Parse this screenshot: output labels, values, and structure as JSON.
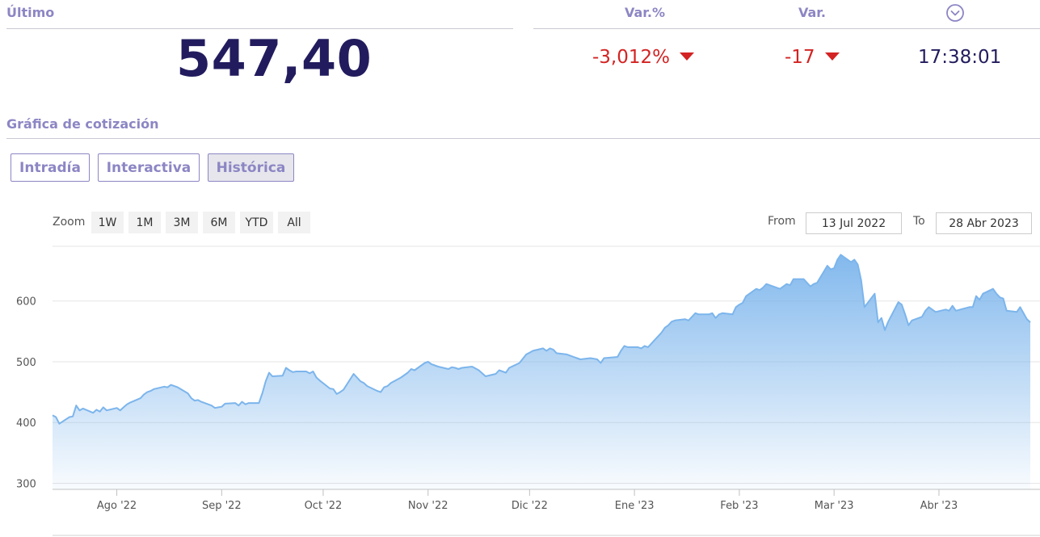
{
  "header": {
    "last_label": "Último",
    "last_value": "547,40",
    "varpct_label": "Var.%",
    "varpct_value": "-3,012%",
    "var_label": "Var.",
    "var_value": "-17",
    "time_value": "17:38:01",
    "negative_color": "#d32323",
    "label_color": "#8c86c4",
    "value_color": "#221c5e"
  },
  "section": {
    "title": "Gráfica de cotización"
  },
  "tabs": [
    {
      "label": "Intradía",
      "active": false
    },
    {
      "label": "Interactiva",
      "active": false
    },
    {
      "label": "Histórica",
      "active": true
    }
  ],
  "zoom": {
    "label": "Zoom",
    "buttons": [
      "1W",
      "1M",
      "3M",
      "6M",
      "YTD",
      "All"
    ]
  },
  "range": {
    "from_label": "From",
    "from_value": "13 Jul 2022",
    "to_label": "To",
    "to_value": "28 Abr 2023"
  },
  "chart_data": {
    "type": "area",
    "title": "",
    "xlabel": "",
    "ylabel": "",
    "ylim": [
      290,
      690
    ],
    "y_ticks": [
      300,
      400,
      500,
      600
    ],
    "x_ticks": [
      {
        "label": "Ago '22",
        "date": "2022-08-01"
      },
      {
        "label": "Sep '22",
        "date": "2022-09-01"
      },
      {
        "label": "Oct '22",
        "date": "2022-10-01"
      },
      {
        "label": "Nov '22",
        "date": "2022-11-01"
      },
      {
        "label": "Dic '22",
        "date": "2022-12-01"
      },
      {
        "label": "Ene '23",
        "date": "2023-01-01"
      },
      {
        "label": "Feb '23",
        "date": "2023-02-01"
      },
      {
        "label": "Mar '23",
        "date": "2023-03-01"
      },
      {
        "label": "Abr '23",
        "date": "2023-04-01"
      }
    ],
    "grid": true,
    "line_color": "#7cb5ec",
    "series": [
      {
        "points": [
          [
            "2022-07-13",
            412
          ],
          [
            "2022-07-14",
            409
          ],
          [
            "2022-07-15",
            398
          ],
          [
            "2022-07-18",
            409
          ],
          [
            "2022-07-19",
            410
          ],
          [
            "2022-07-20",
            428
          ],
          [
            "2022-07-21",
            420
          ],
          [
            "2022-07-22",
            423
          ],
          [
            "2022-07-25",
            416
          ],
          [
            "2022-07-26",
            421
          ],
          [
            "2022-07-27",
            418
          ],
          [
            "2022-07-28",
            425
          ],
          [
            "2022-07-29",
            420
          ],
          [
            "2022-08-01",
            424
          ],
          [
            "2022-08-02",
            420
          ],
          [
            "2022-08-03",
            425
          ],
          [
            "2022-08-04",
            430
          ],
          [
            "2022-08-05",
            433
          ],
          [
            "2022-08-08",
            440
          ],
          [
            "2022-08-09",
            446
          ],
          [
            "2022-08-10",
            450
          ],
          [
            "2022-08-11",
            452
          ],
          [
            "2022-08-12",
            455
          ],
          [
            "2022-08-15",
            459
          ],
          [
            "2022-08-16",
            458
          ],
          [
            "2022-08-17",
            462
          ],
          [
            "2022-08-18",
            460
          ],
          [
            "2022-08-19",
            458
          ],
          [
            "2022-08-22",
            448
          ],
          [
            "2022-08-23",
            440
          ],
          [
            "2022-08-24",
            436
          ],
          [
            "2022-08-25",
            437
          ],
          [
            "2022-08-26",
            434
          ],
          [
            "2022-08-29",
            428
          ],
          [
            "2022-08-30",
            424
          ],
          [
            "2022-08-31",
            425
          ],
          [
            "2022-09-01",
            426
          ],
          [
            "2022-09-02",
            431
          ],
          [
            "2022-09-05",
            432
          ],
          [
            "2022-09-06",
            428
          ],
          [
            "2022-09-07",
            434
          ],
          [
            "2022-09-08",
            430
          ],
          [
            "2022-09-09",
            432
          ],
          [
            "2022-09-12",
            432
          ],
          [
            "2022-09-13",
            448
          ],
          [
            "2022-09-14",
            468
          ],
          [
            "2022-09-15",
            482
          ],
          [
            "2022-09-16",
            476
          ],
          [
            "2022-09-19",
            477
          ],
          [
            "2022-09-20",
            490
          ],
          [
            "2022-09-21",
            486
          ],
          [
            "2022-09-22",
            483
          ],
          [
            "2022-09-23",
            484
          ],
          [
            "2022-09-26",
            484
          ],
          [
            "2022-09-27",
            481
          ],
          [
            "2022-09-28",
            484
          ],
          [
            "2022-09-29",
            474
          ],
          [
            "2022-09-30",
            469
          ],
          [
            "2022-10-03",
            456
          ],
          [
            "2022-10-04",
            455
          ],
          [
            "2022-10-05",
            447
          ],
          [
            "2022-10-06",
            450
          ],
          [
            "2022-10-07",
            454
          ],
          [
            "2022-10-10",
            480
          ],
          [
            "2022-10-11",
            474
          ],
          [
            "2022-10-12",
            468
          ],
          [
            "2022-10-13",
            465
          ],
          [
            "2022-10-14",
            460
          ],
          [
            "2022-10-17",
            452
          ],
          [
            "2022-10-18",
            450
          ],
          [
            "2022-10-19",
            458
          ],
          [
            "2022-10-20",
            460
          ],
          [
            "2022-10-21",
            465
          ],
          [
            "2022-10-24",
            474
          ],
          [
            "2022-10-25",
            478
          ],
          [
            "2022-10-26",
            482
          ],
          [
            "2022-10-27",
            488
          ],
          [
            "2022-10-28",
            486
          ],
          [
            "2022-10-31",
            498
          ],
          [
            "2022-11-01",
            500
          ],
          [
            "2022-11-02",
            496
          ],
          [
            "2022-11-03",
            494
          ],
          [
            "2022-11-04",
            492
          ],
          [
            "2022-11-07",
            488
          ],
          [
            "2022-11-08",
            491
          ],
          [
            "2022-11-09",
            490
          ],
          [
            "2022-11-10",
            488
          ],
          [
            "2022-11-11",
            490
          ],
          [
            "2022-11-14",
            492
          ],
          [
            "2022-11-15",
            489
          ],
          [
            "2022-11-16",
            486
          ],
          [
            "2022-11-17",
            481
          ],
          [
            "2022-11-18",
            476
          ],
          [
            "2022-11-21",
            480
          ],
          [
            "2022-11-22",
            486
          ],
          [
            "2022-11-23",
            484
          ],
          [
            "2022-11-24",
            482
          ],
          [
            "2022-11-25",
            490
          ],
          [
            "2022-11-28",
            498
          ],
          [
            "2022-11-29",
            505
          ],
          [
            "2022-11-30",
            512
          ],
          [
            "2022-12-01",
            515
          ],
          [
            "2022-12-02",
            518
          ],
          [
            "2022-12-05",
            522
          ],
          [
            "2022-12-06",
            518
          ],
          [
            "2022-12-07",
            522
          ],
          [
            "2022-12-08",
            520
          ],
          [
            "2022-12-09",
            514
          ],
          [
            "2022-12-12",
            512
          ],
          [
            "2022-12-13",
            510
          ],
          [
            "2022-12-14",
            508
          ],
          [
            "2022-12-15",
            506
          ],
          [
            "2022-12-16",
            504
          ],
          [
            "2022-12-19",
            506
          ],
          [
            "2022-12-20",
            505
          ],
          [
            "2022-12-21",
            504
          ],
          [
            "2022-12-22",
            498
          ],
          [
            "2022-12-23",
            506
          ],
          [
            "2022-12-27",
            508
          ],
          [
            "2022-12-28",
            518
          ],
          [
            "2022-12-29",
            526
          ],
          [
            "2022-12-30",
            524
          ],
          [
            "2023-01-02",
            524
          ],
          [
            "2023-01-03",
            522
          ],
          [
            "2023-01-04",
            526
          ],
          [
            "2023-01-05",
            524
          ],
          [
            "2023-01-06",
            530
          ],
          [
            "2023-01-09",
            548
          ],
          [
            "2023-01-10",
            556
          ],
          [
            "2023-01-11",
            560
          ],
          [
            "2023-01-12",
            566
          ],
          [
            "2023-01-13",
            568
          ],
          [
            "2023-01-16",
            570
          ],
          [
            "2023-01-17",
            568
          ],
          [
            "2023-01-18",
            574
          ],
          [
            "2023-01-19",
            580
          ],
          [
            "2023-01-20",
            578
          ],
          [
            "2023-01-23",
            578
          ],
          [
            "2023-01-24",
            580
          ],
          [
            "2023-01-25",
            572
          ],
          [
            "2023-01-26",
            578
          ],
          [
            "2023-01-27",
            580
          ],
          [
            "2023-01-30",
            578
          ],
          [
            "2023-01-31",
            590
          ],
          [
            "2023-02-01",
            594
          ],
          [
            "2023-02-02",
            597
          ],
          [
            "2023-02-03",
            608
          ],
          [
            "2023-02-06",
            620
          ],
          [
            "2023-02-07",
            618
          ],
          [
            "2023-02-08",
            622
          ],
          [
            "2023-02-09",
            628
          ],
          [
            "2023-02-10",
            626
          ],
          [
            "2023-02-13",
            620
          ],
          [
            "2023-02-14",
            624
          ],
          [
            "2023-02-15",
            628
          ],
          [
            "2023-02-16",
            626
          ],
          [
            "2023-02-17",
            636
          ],
          [
            "2023-02-20",
            636
          ],
          [
            "2023-02-21",
            630
          ],
          [
            "2023-02-22",
            624
          ],
          [
            "2023-02-23",
            628
          ],
          [
            "2023-02-24",
            630
          ],
          [
            "2023-02-27",
            658
          ],
          [
            "2023-02-28",
            652
          ],
          [
            "2023-03-01",
            654
          ],
          [
            "2023-03-02",
            668
          ],
          [
            "2023-03-03",
            676
          ],
          [
            "2023-03-06",
            664
          ],
          [
            "2023-03-07",
            668
          ],
          [
            "2023-03-08",
            660
          ],
          [
            "2023-03-09",
            634
          ],
          [
            "2023-03-10",
            590
          ],
          [
            "2023-03-13",
            612
          ],
          [
            "2023-03-14",
            565
          ],
          [
            "2023-03-15",
            572
          ],
          [
            "2023-03-16",
            552
          ],
          [
            "2023-03-17",
            566
          ],
          [
            "2023-03-20",
            598
          ],
          [
            "2023-03-21",
            594
          ],
          [
            "2023-03-22",
            578
          ],
          [
            "2023-03-23",
            560
          ],
          [
            "2023-03-24",
            568
          ],
          [
            "2023-03-27",
            574
          ],
          [
            "2023-03-28",
            584
          ],
          [
            "2023-03-29",
            590
          ],
          [
            "2023-03-30",
            586
          ],
          [
            "2023-03-31",
            582
          ],
          [
            "2023-04-03",
            586
          ],
          [
            "2023-04-04",
            584
          ],
          [
            "2023-04-05",
            592
          ],
          [
            "2023-04-06",
            584
          ],
          [
            "2023-04-10",
            590
          ],
          [
            "2023-04-11",
            590
          ],
          [
            "2023-04-12",
            608
          ],
          [
            "2023-04-13",
            602
          ],
          [
            "2023-04-14",
            612
          ],
          [
            "2023-04-17",
            620
          ],
          [
            "2023-04-18",
            612
          ],
          [
            "2023-04-19",
            606
          ],
          [
            "2023-04-20",
            604
          ],
          [
            "2023-04-21",
            584
          ],
          [
            "2023-04-24",
            582
          ],
          [
            "2023-04-25",
            590
          ],
          [
            "2023-04-26",
            580
          ],
          [
            "2023-04-27",
            570
          ],
          [
            "2023-04-28",
            565
          ]
        ]
      }
    ]
  }
}
